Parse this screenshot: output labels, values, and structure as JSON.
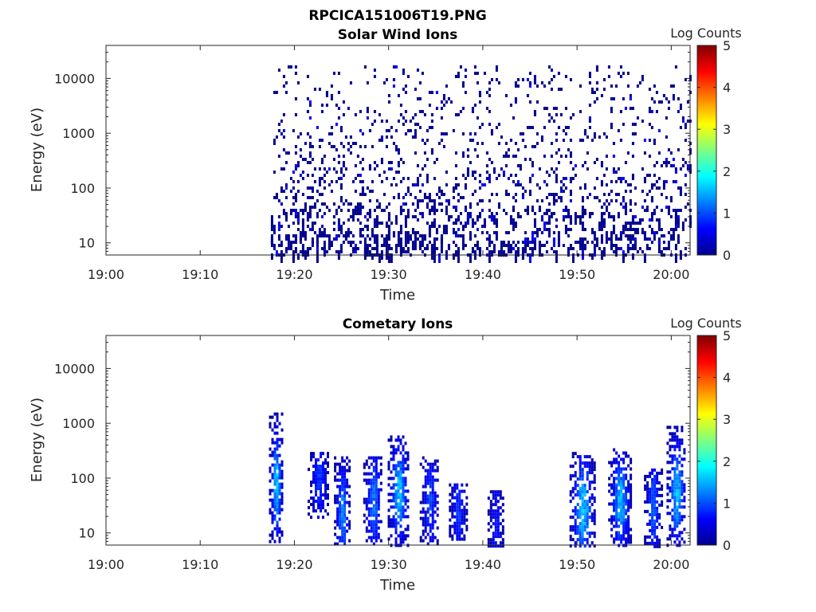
{
  "figure": {
    "title": "RPCICA151006T19.PNG"
  },
  "colormap": {
    "name": "jet",
    "colors": [
      "#00008f",
      "#0000ff",
      "#00ffff",
      "#ffff00",
      "#ff0000",
      "#800000"
    ]
  },
  "chart_data": [
    {
      "type": "heatmap",
      "title": "Solar Wind Ions",
      "xlabel": "Time",
      "ylabel": "Energy (eV)",
      "xlim": [
        "19:00",
        "20:02"
      ],
      "ylim": [
        6,
        40000
      ],
      "yscale": "log",
      "x_ticks": [
        "19:00",
        "19:10",
        "19:20",
        "19:30",
        "19:40",
        "19:50",
        "20:00"
      ],
      "y_ticks": [
        {
          "value": 10,
          "label": "10"
        },
        {
          "value": 100,
          "label": "100"
        },
        {
          "value": 1000,
          "label": "1000"
        },
        {
          "value": 10000,
          "label": "10000"
        }
      ],
      "colorbar": {
        "label": "Log Counts",
        "range": [
          0,
          5
        ],
        "ticks": [
          "0",
          "1",
          "2",
          "3",
          "4",
          "5"
        ]
      },
      "data_start": "19:17.5",
      "data_end": "20:02",
      "description_of_values": "sparse scattered counts mostly log counts ~0 spanning 10 eV to 10000 eV throughout 19:17.5 to 20:02, denser at low energies"
    },
    {
      "type": "heatmap",
      "title": "Cometary Ions",
      "xlabel": "Time",
      "ylabel": "Energy (eV)",
      "xlim": [
        "19:00",
        "20:02"
      ],
      "ylim": [
        6,
        40000
      ],
      "yscale": "log",
      "x_ticks": [
        "19:00",
        "19:10",
        "19:20",
        "19:30",
        "19:40",
        "19:50",
        "20:00"
      ],
      "y_ticks": [
        {
          "value": 10,
          "label": "10"
        },
        {
          "value": 100,
          "label": "100"
        },
        {
          "value": 1000,
          "label": "1000"
        },
        {
          "value": 10000,
          "label": "10000"
        }
      ],
      "colorbar": {
        "label": "Log Counts",
        "range": [
          0,
          5
        ],
        "ticks": [
          "0",
          "1",
          "2",
          "3",
          "4",
          "5"
        ]
      },
      "bursts": [
        {
          "center_min": 18.0,
          "width_min": 1.4,
          "emin": 6,
          "emax": 1800,
          "peak_energy": 80,
          "peak_log_counts": 1.9
        },
        {
          "center_min": 22.5,
          "width_min": 2.2,
          "emin": 20,
          "emax": 300,
          "peak_energy": 100,
          "peak_log_counts": 1.0
        },
        {
          "center_min": 25.0,
          "width_min": 1.6,
          "emin": 6,
          "emax": 250,
          "peak_energy": 25,
          "peak_log_counts": 1.5
        },
        {
          "center_min": 28.3,
          "width_min": 2.0,
          "emin": 6,
          "emax": 250,
          "peak_energy": 40,
          "peak_log_counts": 1.4
        },
        {
          "center_min": 31.0,
          "width_min": 2.2,
          "emin": 6,
          "emax": 600,
          "peak_energy": 60,
          "peak_log_counts": 1.8
        },
        {
          "center_min": 34.3,
          "width_min": 2.0,
          "emin": 6,
          "emax": 250,
          "peak_energy": 40,
          "peak_log_counts": 1.1
        },
        {
          "center_min": 37.3,
          "width_min": 1.8,
          "emin": 8,
          "emax": 80,
          "peak_energy": 30,
          "peak_log_counts": 1.0
        },
        {
          "center_min": 41.3,
          "width_min": 1.6,
          "emin": 6,
          "emax": 60,
          "peak_energy": 15,
          "peak_log_counts": 0.8
        },
        {
          "center_min": 50.5,
          "width_min": 2.6,
          "emin": 6,
          "emax": 300,
          "peak_energy": 30,
          "peak_log_counts": 1.9
        },
        {
          "center_min": 54.5,
          "width_min": 2.4,
          "emin": 6,
          "emax": 350,
          "peak_energy": 40,
          "peak_log_counts": 1.7
        },
        {
          "center_min": 58.0,
          "width_min": 1.8,
          "emin": 6,
          "emax": 150,
          "peak_energy": 30,
          "peak_log_counts": 1.3
        },
        {
          "center_min": 60.5,
          "width_min": 2.0,
          "emin": 6,
          "emax": 900,
          "peak_energy": 60,
          "peak_log_counts": 1.8
        }
      ]
    }
  ]
}
